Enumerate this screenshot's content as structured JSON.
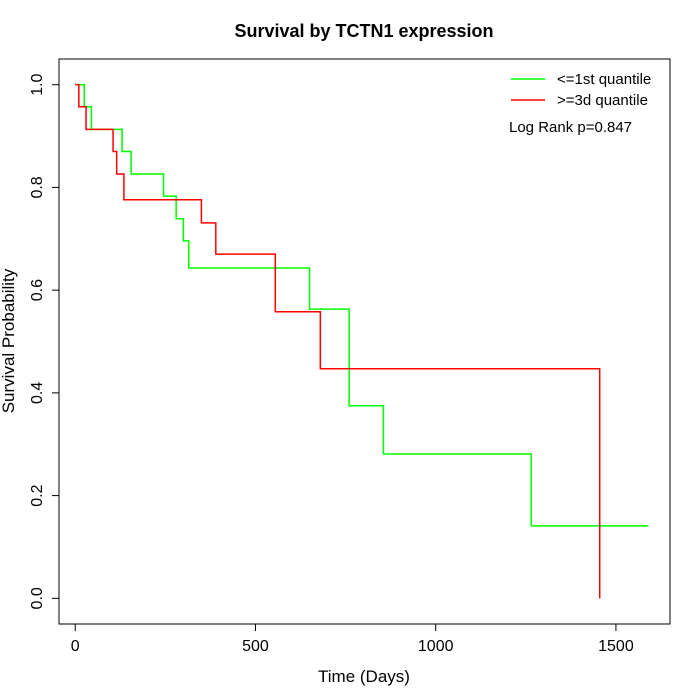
{
  "chart_data": {
    "type": "line",
    "title": "Survival by TCTN1 expression",
    "xlabel": "Time (Days)",
    "ylabel": "Survival Probability",
    "xlim": [
      -45,
      1650
    ],
    "ylim": [
      -0.05,
      1.05
    ],
    "xticks": [
      0,
      500,
      1000,
      1500
    ],
    "yticks": [
      0.0,
      0.2,
      0.4,
      0.6,
      0.8,
      1.0
    ],
    "xtick_labels": [
      "0",
      "500",
      "1000",
      "1500"
    ],
    "ytick_labels": [
      "0.0",
      "0.2",
      "0.4",
      "0.6",
      "0.8",
      "1.0"
    ],
    "legend_position": "top-right",
    "annotation": "Log Rank p=0.847",
    "series": [
      {
        "name": "<=1st quantile",
        "color": "#00ff00",
        "steps": [
          [
            0,
            1.0
          ],
          [
            25,
            0.957
          ],
          [
            45,
            0.913
          ],
          [
            130,
            0.87
          ],
          [
            155,
            0.826
          ],
          [
            245,
            0.783
          ],
          [
            280,
            0.739
          ],
          [
            300,
            0.696
          ],
          [
            315,
            0.643
          ],
          [
            650,
            0.563
          ],
          [
            760,
            0.375
          ],
          [
            855,
            0.281
          ],
          [
            1265,
            0.141
          ],
          [
            1590,
            0.141
          ]
        ]
      },
      {
        "name": ">=3d quantile",
        "color": "#ff0000",
        "steps": [
          [
            0,
            1.0
          ],
          [
            10,
            0.957
          ],
          [
            30,
            0.913
          ],
          [
            105,
            0.87
          ],
          [
            115,
            0.826
          ],
          [
            135,
            0.776
          ],
          [
            350,
            0.731
          ],
          [
            390,
            0.67
          ],
          [
            555,
            0.558
          ],
          [
            680,
            0.447
          ],
          [
            1455,
            0.0
          ]
        ]
      }
    ]
  }
}
